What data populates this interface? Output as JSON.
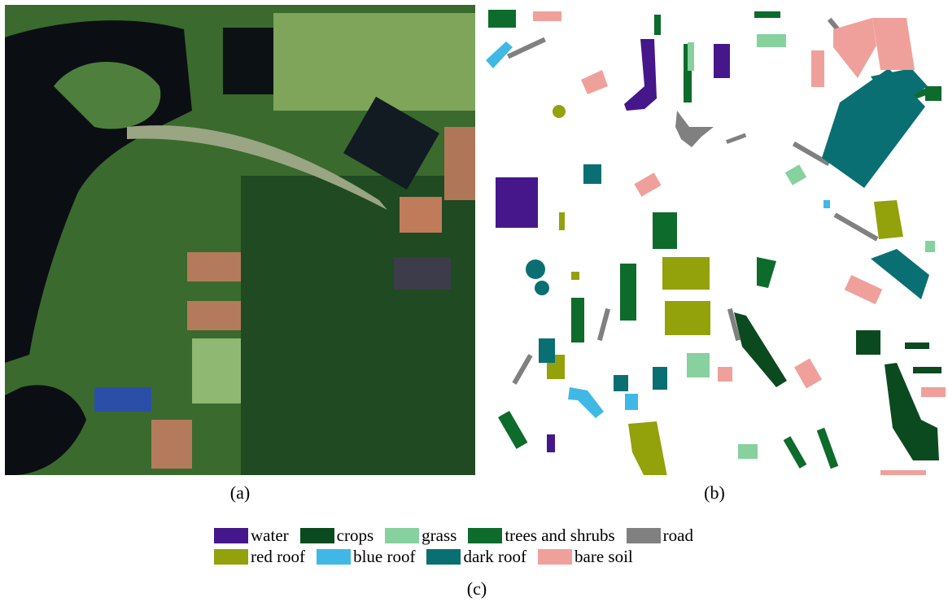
{
  "captions": {
    "a": "(a)",
    "b": "(b)",
    "c": "(c)"
  },
  "legend": [
    {
      "key": "water",
      "label": "water",
      "color": "#45178a"
    },
    {
      "key": "crops",
      "label": "crops",
      "color": "#0b4a1f"
    },
    {
      "key": "grass",
      "label": "grass",
      "color": "#86d19e"
    },
    {
      "key": "trees",
      "label": "trees and shrubs",
      "color": "#0d6b2b"
    },
    {
      "key": "road",
      "label": "road",
      "color": "#808080"
    },
    {
      "key": "red_roof",
      "label": "red roof",
      "color": "#93a10a"
    },
    {
      "key": "blue_roof",
      "label": "blue roof",
      "color": "#40b8e6"
    },
    {
      "key": "dark_roof",
      "label": "dark roof",
      "color": "#0a6f72"
    },
    {
      "key": "bare_soil",
      "label": "bare soil",
      "color": "#f0a09b"
    }
  ]
}
